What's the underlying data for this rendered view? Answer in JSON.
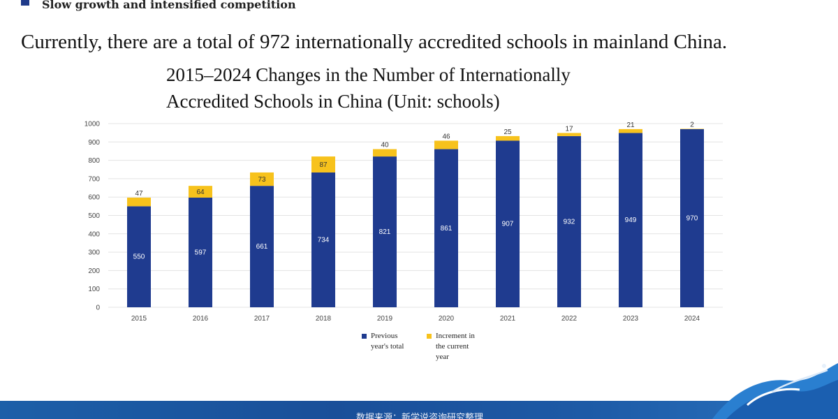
{
  "heading": "Slow growth and intensified competition",
  "intro": "Currently, there are a total of 972 internationally accredited schools in mainland China.",
  "title_lines": [
    "2015–2024 Changes in the Number of Internationally",
    "Accredited Schools in China (Unit: schools)"
  ],
  "footer_source": "数据来源：新学说咨询研究整理",
  "colors": {
    "previous": "#1f3b8f",
    "increment": "#f7c21c",
    "bullet": "#1f3a8a"
  },
  "chart_data": {
    "type": "bar",
    "stacked": true,
    "title": "2015–2024 Changes in the Number of Internationally Accredited Schools in China (Unit: schools)",
    "categories": [
      "2015",
      "2016",
      "2017",
      "2018",
      "2019",
      "2020",
      "2021",
      "2022",
      "2023",
      "2024"
    ],
    "series": [
      {
        "name": "Previous year's total",
        "color": "#1f3b8f",
        "values": [
          550,
          597,
          661,
          734,
          821,
          861,
          907,
          932,
          949,
          970
        ]
      },
      {
        "name": "Increment in the current year",
        "color": "#f7c21c",
        "values": [
          47,
          64,
          73,
          87,
          40,
          46,
          25,
          17,
          21,
          2
        ]
      }
    ],
    "ylim": [
      0,
      1000
    ],
    "yticks": [
      0,
      100,
      200,
      300,
      400,
      500,
      600,
      700,
      800,
      900,
      1000
    ],
    "grid": true,
    "legend": "bottom"
  }
}
